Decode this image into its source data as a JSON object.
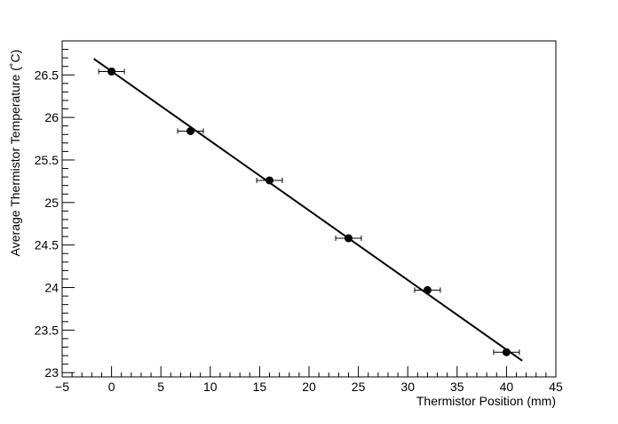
{
  "chart_data": {
    "type": "scatter",
    "title": "",
    "xlabel": "Thermistor Position (mm)",
    "ylabel": "Average Thermistor Temperature (˚C)",
    "xlim": [
      -5,
      45
    ],
    "ylim": [
      22.95,
      26.9
    ],
    "xticks": [
      -5,
      0,
      5,
      10,
      15,
      20,
      25,
      30,
      35,
      40,
      45
    ],
    "yticks": [
      23,
      23.5,
      24,
      24.5,
      25,
      25.5,
      26,
      26.5
    ],
    "xtick_labels": [
      "−5",
      "0",
      "5",
      "10",
      "15",
      "20",
      "25",
      "30",
      "35",
      "40",
      "45"
    ],
    "ytick_labels": [
      "23",
      "23.5",
      "24",
      "24.5",
      "25",
      "25.5",
      "26",
      "26.5"
    ],
    "grid": false,
    "series": [
      {
        "type": "scatter",
        "x": [
          0,
          8,
          16,
          24,
          32,
          40
        ],
        "y": [
          26.54,
          25.84,
          25.26,
          24.58,
          23.97,
          23.24
        ],
        "xerr": [
          1.3,
          1.3,
          1.3,
          1.3,
          1.3,
          1.3
        ],
        "marker": "circle",
        "color": "#000000"
      },
      {
        "type": "line",
        "x": [
          -1.8,
          41.6
        ],
        "y": [
          26.69,
          23.14
        ],
        "color": "#000000"
      }
    ]
  }
}
